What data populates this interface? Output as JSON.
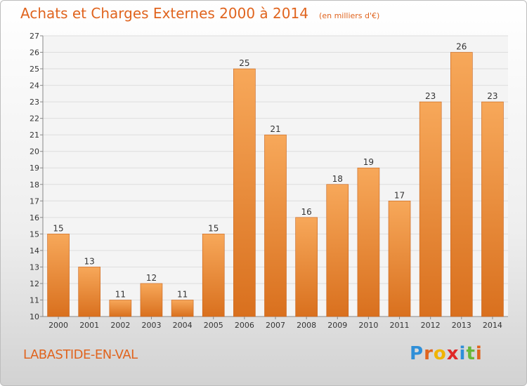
{
  "title": "Achats et Charges Externes 2000 à 2014",
  "subtitle": "(en milliers d'€)",
  "town": "LABASTIDE-EN-VAL",
  "logo": {
    "letters": [
      {
        "char": "P",
        "color": "#2f8fd8"
      },
      {
        "char": "r",
        "color": "#e0641e"
      },
      {
        "char": "o",
        "color": "#f0b400"
      },
      {
        "char": "x",
        "color": "#e02828"
      },
      {
        "char": "i",
        "color": "#2f8fd8"
      },
      {
        "char": "t",
        "color": "#68b838"
      },
      {
        "char": "i",
        "color": "#e0641e"
      }
    ]
  },
  "colors": {
    "title": "#e0641e",
    "bar_light": "#f7a85a",
    "bar_dark": "#d9701e",
    "axis_text": "#333333"
  },
  "chart_data": {
    "type": "bar",
    "categories": [
      "2000",
      "2001",
      "2002",
      "2003",
      "2004",
      "2005",
      "2006",
      "2007",
      "2008",
      "2009",
      "2010",
      "2011",
      "2012",
      "2013",
      "2014"
    ],
    "values": [
      15,
      13,
      11,
      12,
      11,
      15,
      25,
      21,
      16,
      18,
      19,
      17,
      23,
      26,
      23
    ],
    "ylim": [
      10,
      27
    ],
    "yticks": [
      10,
      11,
      12,
      13,
      14,
      15,
      16,
      17,
      18,
      19,
      20,
      21,
      22,
      23,
      24,
      25,
      26,
      27
    ],
    "grid": true,
    "legend": "none"
  }
}
